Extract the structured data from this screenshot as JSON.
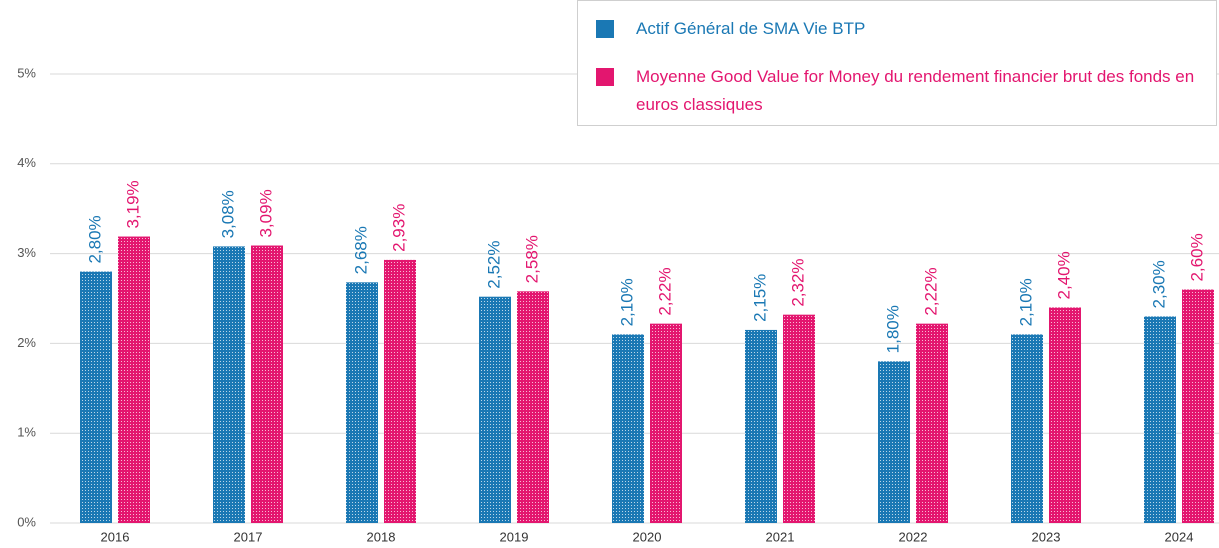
{
  "chart_data": {
    "type": "bar",
    "categories": [
      "2016",
      "2017",
      "2018",
      "2019",
      "2020",
      "2021",
      "2022",
      "2023",
      "2024"
    ],
    "series": [
      {
        "name": "Actif Général de SMA Vie BTP",
        "color": "#1a78b4",
        "values": [
          2.8,
          3.08,
          2.68,
          2.52,
          2.1,
          2.15,
          1.8,
          2.1,
          2.3
        ],
        "value_labels": [
          "2,80%",
          "3,08%",
          "2,68%",
          "2,52%",
          "2,10%",
          "2,15%",
          "1,80%",
          "2,10%",
          "2,30%"
        ]
      },
      {
        "name": "Moyenne Good Value for Money du rendement financier brut des fonds en euros classiques",
        "color": "#e3166f",
        "values": [
          3.19,
          3.09,
          2.93,
          2.58,
          2.22,
          2.32,
          2.22,
          2.4,
          2.6
        ],
        "value_labels": [
          "3,19%",
          "3,09%",
          "2,93%",
          "2,58%",
          "2,22%",
          "2,32%",
          "2,22%",
          "2,40%",
          "2,60%"
        ]
      }
    ],
    "ylim": [
      0,
      5
    ],
    "yticks": [
      {
        "value": 0,
        "label": "0%"
      },
      {
        "value": 1,
        "label": "1%"
      },
      {
        "value": 2,
        "label": "2%"
      },
      {
        "value": 3,
        "label": "3%"
      },
      {
        "value": 4,
        "label": "4%"
      },
      {
        "value": 5,
        "label": "5%"
      }
    ],
    "grid": true,
    "legend": "top-right"
  }
}
